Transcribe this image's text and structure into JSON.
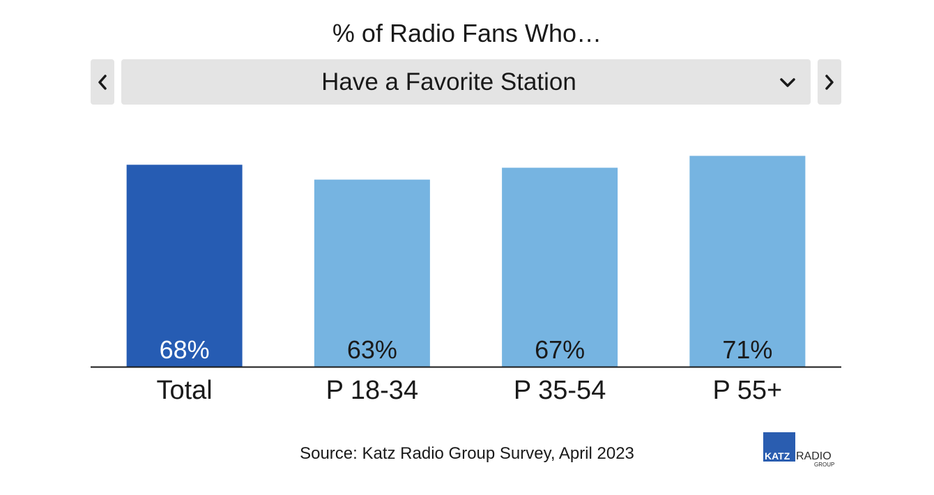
{
  "header": {
    "title": "% of Radio Fans Who…"
  },
  "selector": {
    "selected_label": "Have a Favorite Station"
  },
  "icons": {
    "prev": "chevron-left-icon",
    "next": "chevron-right-icon",
    "dropdown": "chevron-down-icon"
  },
  "colors": {
    "highlight_bar": "#265cb3",
    "bar": "#76b4e1",
    "highlight_label": "#ffffff",
    "label": "#1a1a1a",
    "control_bg": "#e4e4e4"
  },
  "chart_data": {
    "type": "bar",
    "categories": [
      "Total",
      "P 18-34",
      "P 35-54",
      "P 55+"
    ],
    "values": [
      68,
      63,
      67,
      71
    ],
    "value_labels": [
      "68%",
      "63%",
      "67%",
      "71%"
    ],
    "highlight_index": 0,
    "ylim": [
      0,
      100
    ],
    "grid": false,
    "legend": "none"
  },
  "footer": {
    "source": "Source: Katz Radio Group Survey, April 2023"
  },
  "logo": {
    "katz": "KATZ",
    "radio": "RADIO",
    "group": "GROUP"
  }
}
